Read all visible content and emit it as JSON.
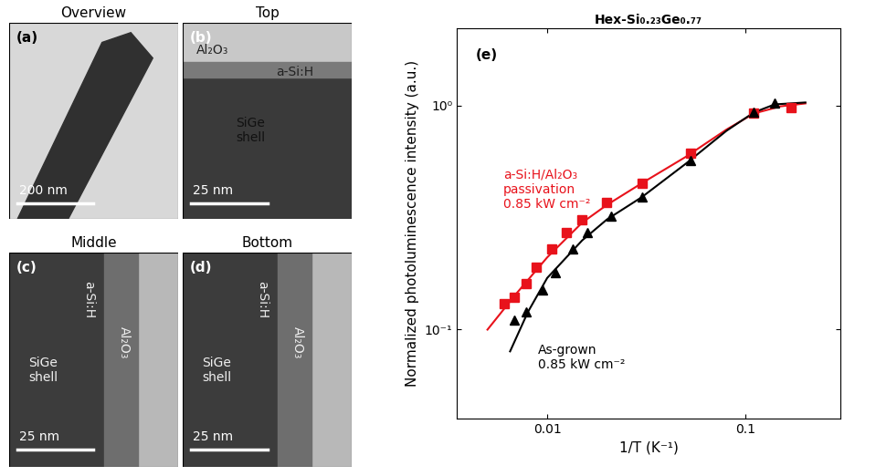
{
  "micrographs": [
    {
      "title": "Overview",
      "label": "(a)",
      "scale_bar": "200 nm",
      "annotations": []
    },
    {
      "title": "Top",
      "label": "(b)",
      "scale_bar": "25 nm",
      "annotations": [
        "Al₂O₃",
        "a-Si:H",
        "SiGe\nshell"
      ]
    },
    {
      "title": "Middle",
      "label": "(c)",
      "scale_bar": "25 nm",
      "annotations": [
        "a-Si:H",
        "SiGe\nshell",
        "Al₂O₃"
      ]
    },
    {
      "title": "Bottom",
      "label": "(d)",
      "scale_bar": "25 nm",
      "annotations": [
        "a-Si:H",
        "SiGe\nshell",
        "Al₂O₃"
      ]
    }
  ],
  "chart_data": {
    "type": "scatter",
    "title": "Hex-Si₀.₂₃Ge₀.₇₇",
    "panel_label": "(e)",
    "x_label": "1/T (K⁻¹)",
    "y_label": "Normalized photoluminescence intensity (a.u.)",
    "log": true,
    "xlim": [
      0.0035,
      0.3
    ],
    "ylim": [
      0.04,
      2.2
    ],
    "xticks": [
      0.01,
      0.1
    ],
    "yticks": [
      {
        "value": 0.1,
        "label": "10⁻¹"
      },
      {
        "value": 1,
        "label": "10⁰"
      }
    ],
    "series": [
      {
        "label": "a-Si:H/Al₂O₃\npassivation\n0.85 kW cm⁻²",
        "color": "#e8121b",
        "marker": "square",
        "x": [
          0.0061,
          0.0068,
          0.0078,
          0.0088,
          0.0105,
          0.0125,
          0.015,
          0.02,
          0.03,
          0.053,
          0.11,
          0.17
        ],
        "values": [
          0.13,
          0.14,
          0.16,
          0.19,
          0.23,
          0.27,
          0.31,
          0.37,
          0.45,
          0.61,
          0.92,
          0.98
        ],
        "fit_x": [
          0.005,
          0.007,
          0.01,
          0.015,
          0.02,
          0.03,
          0.05,
          0.08,
          0.11,
          0.15,
          0.2
        ],
        "fit_values": [
          0.1,
          0.145,
          0.21,
          0.3,
          0.36,
          0.45,
          0.59,
          0.78,
          0.92,
          0.99,
          1.02
        ]
      },
      {
        "label": "As-grown\n0.85 kW cm⁻²",
        "color": "#000000",
        "marker": "triangle",
        "x": [
          0.0068,
          0.0078,
          0.0095,
          0.011,
          0.0135,
          0.016,
          0.021,
          0.03,
          0.053,
          0.11,
          0.14
        ],
        "values": [
          0.11,
          0.12,
          0.15,
          0.18,
          0.23,
          0.27,
          0.32,
          0.39,
          0.57,
          0.93,
          1.02
        ],
        "fit_x": [
          0.0065,
          0.008,
          0.01,
          0.015,
          0.02,
          0.03,
          0.05,
          0.08,
          0.11,
          0.14,
          0.2
        ],
        "fit_values": [
          0.08,
          0.12,
          0.17,
          0.25,
          0.31,
          0.39,
          0.55,
          0.77,
          0.93,
          1.01,
          1.03
        ]
      }
    ]
  }
}
